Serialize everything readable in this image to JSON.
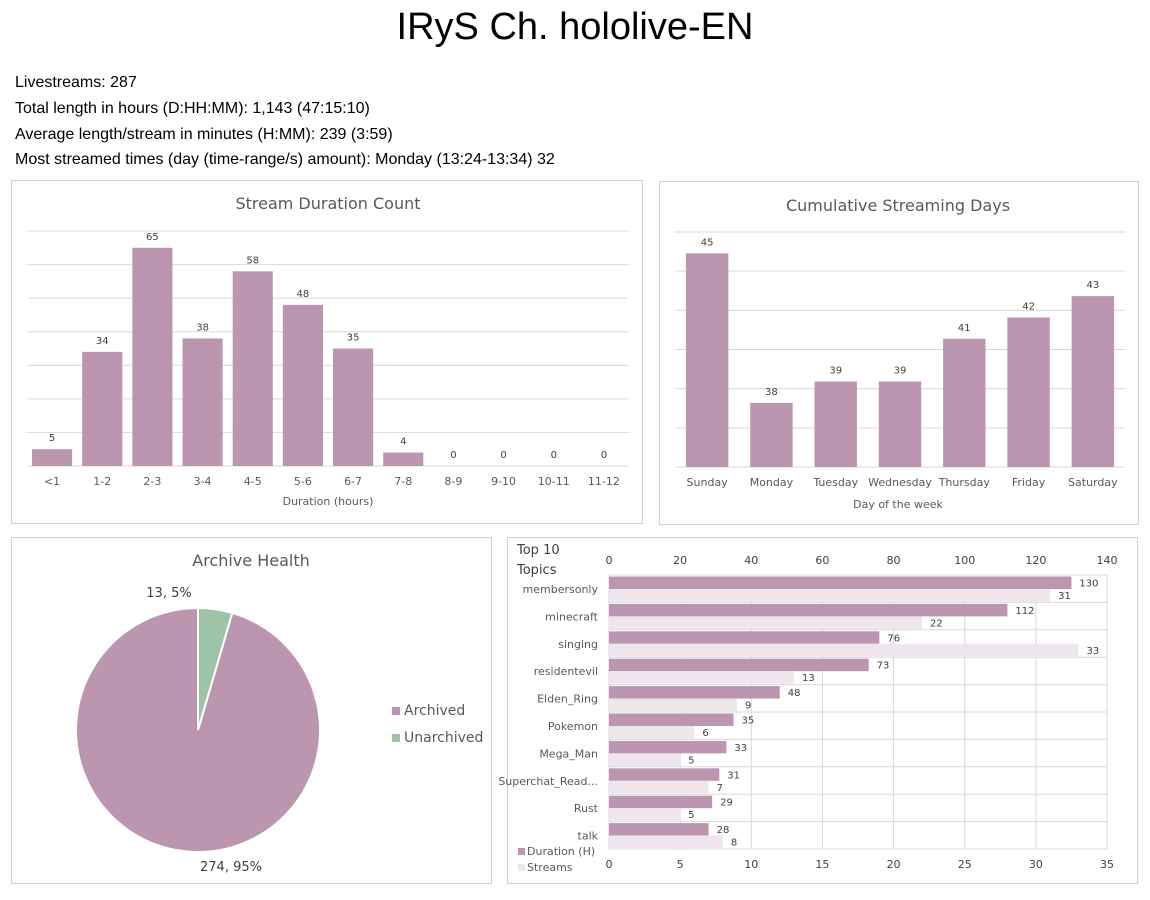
{
  "header": {
    "title": "IRyS Ch. hololive-EN",
    "stats": [
      "Livestreams: 287",
      "Total length in hours (D:HH:MM): 1,143 (47:15:10)",
      "Average length/stream in minutes (H:MM): 239 (3:59)",
      "Most streamed times (day (time-range/s) amount): Monday (13:24-13:34) 32"
    ]
  },
  "colors": {
    "primary": "#bc96b0",
    "light": "#eee6ec",
    "green": "#9dc4a6",
    "grid": "#d9d9d9",
    "text": "#404040"
  },
  "chart_data": [
    {
      "type": "bar",
      "title": "Stream Duration Count",
      "xlabel": "Duration (hours)",
      "ylabel": "",
      "categories": [
        "<1",
        "1-2",
        "2-3",
        "3-4",
        "4-5",
        "5-6",
        "6-7",
        "7-8",
        "8-9",
        "9-10",
        "10-11",
        "11-12"
      ],
      "values": [
        5,
        34,
        65,
        38,
        58,
        48,
        35,
        4,
        0,
        0,
        0,
        0
      ],
      "ylim": [
        0,
        70
      ],
      "grid": true,
      "data_labels": true
    },
    {
      "type": "bar",
      "title": "Cumulative Streaming Days",
      "xlabel": "Day of the week",
      "ylabel": "",
      "categories": [
        "Sunday",
        "Monday",
        "Tuesday",
        "Wednesday",
        "Thursday",
        "Friday",
        "Saturday"
      ],
      "values": [
        45,
        38,
        39,
        39,
        41,
        42,
        43
      ],
      "ylim": [
        35,
        46
      ],
      "grid": true,
      "data_labels": true
    },
    {
      "type": "pie",
      "title": "Archive Health",
      "labels": [
        "Archived",
        "Unarchived"
      ],
      "values": [
        274,
        13
      ],
      "data_labels": [
        "274, 95%",
        "13, 5%"
      ],
      "legend": "right"
    },
    {
      "type": "bar",
      "orientation": "horizontal",
      "title": "Top 10 Topics",
      "categories": [
        "membersonly",
        "minecraft",
        "singing",
        "residentevil",
        "Elden_Ring",
        "Pokemon",
        "Mega_Man",
        "Superchat_Read...",
        "Rust",
        "talk"
      ],
      "series": [
        {
          "name": "Duration (H)",
          "values": [
            130,
            112,
            76,
            73,
            48,
            35,
            33,
            31,
            29,
            28
          ],
          "axis": "top",
          "xlim": [
            0,
            140
          ],
          "ticks": [
            0,
            20,
            40,
            60,
            80,
            100,
            120,
            140
          ]
        },
        {
          "name": "Streams",
          "values": [
            31,
            22,
            33,
            13,
            9,
            6,
            5,
            7,
            5,
            8
          ],
          "axis": "bottom",
          "xlim": [
            0,
            35
          ],
          "ticks": [
            0,
            5,
            10,
            15,
            20,
            25,
            30,
            35
          ]
        }
      ],
      "legend": "bottom-left",
      "grid": true
    }
  ]
}
